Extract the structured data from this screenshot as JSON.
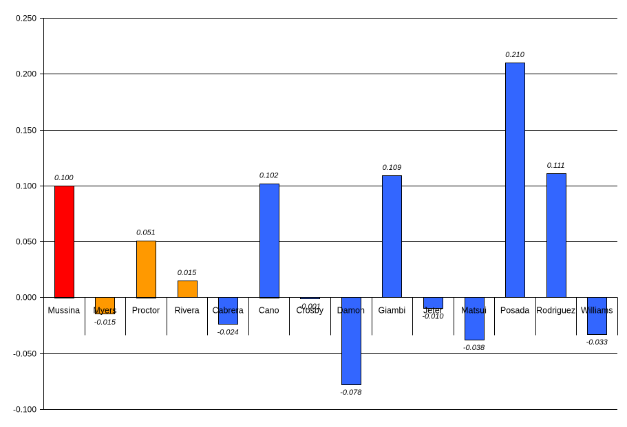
{
  "chart_data": {
    "type": "bar",
    "categories": [
      "Mussina",
      "Myers",
      "Proctor",
      "Rivera",
      "Cabrera",
      "Cano",
      "Crosby",
      "Damon",
      "Giambi",
      "Jeter",
      "Matsui",
      "Posada",
      "Rodriguez",
      "Williams"
    ],
    "values": [
      0.1,
      -0.015,
      0.051,
      0.015,
      -0.024,
      0.102,
      -0.001,
      -0.078,
      0.109,
      -0.01,
      -0.038,
      0.21,
      0.111,
      -0.033
    ],
    "data_labels": [
      "0.100",
      "-0.015",
      "0.051",
      "0.015",
      "-0.024",
      "0.102",
      "-0.001",
      "-0.078",
      "0.109",
      "-0.010",
      "-0.038",
      "0.210",
      "0.111",
      "-0.033"
    ],
    "bar_colors": [
      "#ff0000",
      "#ff9900",
      "#ff9900",
      "#ff9900",
      "#3366ff",
      "#3366ff",
      "#3366ff",
      "#3366ff",
      "#3366ff",
      "#3366ff",
      "#3366ff",
      "#3366ff",
      "#3366ff",
      "#3366ff"
    ],
    "title": "",
    "xlabel": "",
    "ylabel": "",
    "ylim": [
      -0.1,
      0.25
    ],
    "yticks": [
      0.25,
      0.2,
      0.15,
      0.1,
      0.05,
      0,
      -0.05,
      -0.1
    ],
    "ytick_labels": [
      "0.250",
      "0.200",
      "0.150",
      "0.100",
      "0.050",
      "0.000",
      "-0.050",
      "-0.100"
    ],
    "grid": true,
    "legend": "none",
    "colors": {
      "gridline": "#000000",
      "bar_outline": "#000000",
      "background": "#ffffff"
    }
  }
}
